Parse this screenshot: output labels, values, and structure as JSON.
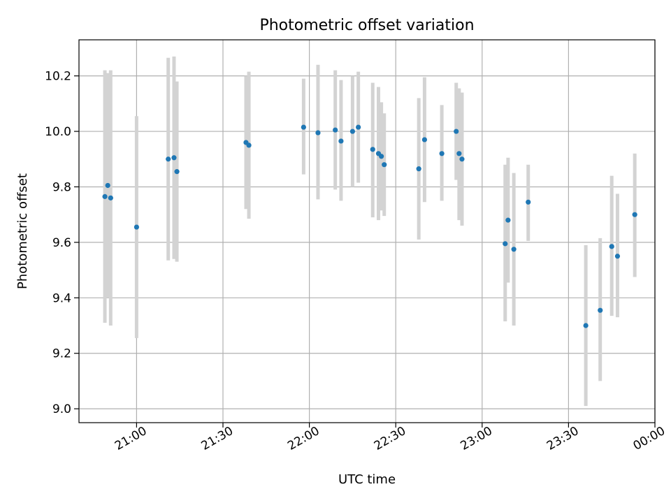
{
  "chart_data": {
    "type": "scatter",
    "title": "Photometric offset variation",
    "xlabel": "UTC time",
    "ylabel": "Photometric offset",
    "x_tick_labels": [
      "21:00",
      "21:30",
      "22:00",
      "22:30",
      "23:00",
      "23:30",
      "00:00"
    ],
    "x_tick_values": [
      "21:00",
      "21:30",
      "22:00",
      "22:30",
      "23:00",
      "23:30",
      "24:00"
    ],
    "y_tick_labels": [
      "9.0",
      "9.2",
      "9.4",
      "9.6",
      "9.8",
      "10.0",
      "10.2"
    ],
    "y_tick_values": [
      9.0,
      9.2,
      9.4,
      9.6,
      9.8,
      10.0,
      10.2
    ],
    "xlim": [
      "20:40",
      "24:00"
    ],
    "ylim": [
      8.95,
      10.33
    ],
    "grid": true,
    "legend": "none",
    "colors": {
      "points": "#1f77b4",
      "error_bars": "#d3d3d3",
      "grid": "#b0b0b0"
    },
    "points": [
      {
        "x": "20:49",
        "y": 9.765,
        "lo": 9.31,
        "hi": 10.22
      },
      {
        "x": "20:50",
        "y": 9.805,
        "lo": 9.4,
        "hi": 10.21
      },
      {
        "x": "20:51",
        "y": 9.76,
        "lo": 9.3,
        "hi": 10.22
      },
      {
        "x": "21:00",
        "y": 9.655,
        "lo": 9.255,
        "hi": 10.055
      },
      {
        "x": "21:11",
        "y": 9.9,
        "lo": 9.535,
        "hi": 10.265
      },
      {
        "x": "21:13",
        "y": 9.905,
        "lo": 9.54,
        "hi": 10.27
      },
      {
        "x": "21:14",
        "y": 9.855,
        "lo": 9.53,
        "hi": 10.18
      },
      {
        "x": "21:38",
        "y": 9.96,
        "lo": 9.72,
        "hi": 10.2
      },
      {
        "x": "21:39",
        "y": 9.95,
        "lo": 9.685,
        "hi": 10.215
      },
      {
        "x": "21:58",
        "y": 10.015,
        "lo": 9.845,
        "hi": 10.19
      },
      {
        "x": "22:03",
        "y": 9.995,
        "lo": 9.755,
        "hi": 10.24
      },
      {
        "x": "22:09",
        "y": 10.005,
        "lo": 9.79,
        "hi": 10.22
      },
      {
        "x": "22:11",
        "y": 9.965,
        "lo": 9.75,
        "hi": 10.185
      },
      {
        "x": "22:15",
        "y": 10.0,
        "lo": 9.8,
        "hi": 10.2
      },
      {
        "x": "22:17",
        "y": 10.015,
        "lo": 9.815,
        "hi": 10.215
      },
      {
        "x": "22:22",
        "y": 9.935,
        "lo": 9.69,
        "hi": 10.175
      },
      {
        "x": "22:24",
        "y": 9.92,
        "lo": 9.68,
        "hi": 10.16
      },
      {
        "x": "22:25",
        "y": 9.91,
        "lo": 9.715,
        "hi": 10.105
      },
      {
        "x": "22:26",
        "y": 9.88,
        "lo": 9.695,
        "hi": 10.065
      },
      {
        "x": "22:38",
        "y": 9.865,
        "lo": 9.61,
        "hi": 10.12
      },
      {
        "x": "22:40",
        "y": 9.97,
        "lo": 9.745,
        "hi": 10.195
      },
      {
        "x": "22:46",
        "y": 9.92,
        "lo": 9.75,
        "hi": 10.095
      },
      {
        "x": "22:51",
        "y": 10.0,
        "lo": 9.825,
        "hi": 10.175
      },
      {
        "x": "22:52",
        "y": 9.92,
        "lo": 9.68,
        "hi": 10.155
      },
      {
        "x": "22:53",
        "y": 9.9,
        "lo": 9.66,
        "hi": 10.14
      },
      {
        "x": "23:08",
        "y": 9.595,
        "lo": 9.315,
        "hi": 9.88
      },
      {
        "x": "23:09",
        "y": 9.68,
        "lo": 9.455,
        "hi": 9.905
      },
      {
        "x": "23:11",
        "y": 9.575,
        "lo": 9.3,
        "hi": 9.85
      },
      {
        "x": "23:16",
        "y": 9.745,
        "lo": 9.605,
        "hi": 9.88
      },
      {
        "x": "23:36",
        "y": 9.3,
        "lo": 9.01,
        "hi": 9.59
      },
      {
        "x": "23:41",
        "y": 9.355,
        "lo": 9.1,
        "hi": 9.615
      },
      {
        "x": "23:45",
        "y": 9.585,
        "lo": 9.335,
        "hi": 9.84
      },
      {
        "x": "23:47",
        "y": 9.55,
        "lo": 9.33,
        "hi": 9.775
      },
      {
        "x": "23:53",
        "y": 9.7,
        "lo": 9.475,
        "hi": 9.92
      }
    ]
  }
}
